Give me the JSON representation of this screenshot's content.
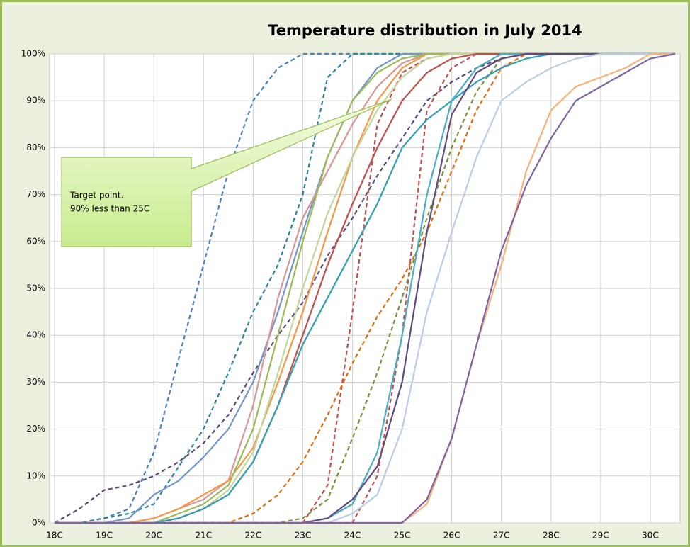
{
  "chart_data": {
    "type": "line",
    "title": "Temperature distribution in July 2014",
    "annotation": [
      "Target point.",
      "90% less than 25C"
    ],
    "x": [
      18,
      18.5,
      19,
      19.5,
      20,
      20.5,
      21,
      21.5,
      22,
      22.5,
      23,
      23.5,
      24,
      24.5,
      25,
      25.5,
      26,
      26.5,
      27,
      27.5,
      28,
      28.5,
      29,
      29.5,
      30,
      30.5
    ],
    "xlim": [
      17.9,
      30.6
    ],
    "xticks": [
      {
        "value": 18,
        "label": "18C"
      },
      {
        "value": 19,
        "label": "19C"
      },
      {
        "value": 20,
        "label": "20C"
      },
      {
        "value": 21,
        "label": "21C"
      },
      {
        "value": 22,
        "label": "22C"
      },
      {
        "value": 23,
        "label": "23C"
      },
      {
        "value": 24,
        "label": "24C"
      },
      {
        "value": 25,
        "label": "25C"
      },
      {
        "value": 26,
        "label": "26C"
      },
      {
        "value": 27,
        "label": "27C"
      },
      {
        "value": 28,
        "label": "28C"
      },
      {
        "value": 29,
        "label": "29C"
      },
      {
        "value": 30,
        "label": "30C"
      }
    ],
    "ylim": [
      0,
      100
    ],
    "yticks": [
      {
        "value": 0,
        "label": "0%"
      },
      {
        "value": 10,
        "label": "10%"
      },
      {
        "value": 20,
        "label": "20%"
      },
      {
        "value": 30,
        "label": "30%"
      },
      {
        "value": 40,
        "label": "40%"
      },
      {
        "value": 50,
        "label": "50%"
      },
      {
        "value": 60,
        "label": "60%"
      },
      {
        "value": 70,
        "label": "70%"
      },
      {
        "value": 80,
        "label": "80%"
      },
      {
        "value": 90,
        "label": "90%"
      },
      {
        "value": 100,
        "label": "100%"
      }
    ],
    "grid": true,
    "series": [
      {
        "color": "#4f81bd",
        "dashed": true,
        "values": [
          0,
          0,
          1,
          3,
          15,
          35,
          55,
          75,
          90,
          97,
          100,
          100,
          100,
          100,
          100,
          100,
          100,
          100,
          100,
          100,
          100,
          100,
          100,
          100,
          100,
          100
        ]
      },
      {
        "color": "#31859c",
        "dashed": true,
        "values": [
          0,
          0,
          1,
          2,
          4,
          12,
          20,
          32,
          45,
          55,
          70,
          95,
          100,
          100,
          100,
          100,
          100,
          100,
          100,
          100,
          100,
          100,
          100,
          100,
          100,
          100
        ]
      },
      {
        "color": "#604a7b",
        "dashed": true,
        "values": [
          0,
          3,
          7,
          8,
          10,
          13,
          17,
          23,
          32,
          40,
          47,
          57,
          65,
          74,
          82,
          90,
          94,
          97,
          99,
          100,
          100,
          100,
          100,
          100,
          100,
          100
        ]
      },
      {
        "color": "#c0504d",
        "dashed": true,
        "values": [
          0,
          0,
          0,
          0,
          0,
          0,
          0,
          0,
          0,
          0,
          0,
          8,
          45,
          85,
          96,
          99,
          100,
          100,
          100,
          100,
          100,
          100,
          100,
          100,
          100,
          100
        ]
      },
      {
        "color": "#c0504d",
        "dashed": true,
        "values": [
          0,
          0,
          0,
          0,
          0,
          0,
          0,
          0,
          0,
          0,
          0,
          0,
          0,
          10,
          40,
          88,
          97,
          100,
          100,
          100,
          100,
          100,
          100,
          100,
          100,
          100
        ]
      },
      {
        "color": "#e46c0a",
        "dashed": true,
        "values": [
          0,
          0,
          0,
          0,
          0,
          0,
          0,
          0,
          2,
          6,
          13,
          23,
          34,
          44,
          52,
          62,
          75,
          88,
          97,
          100,
          100,
          100,
          100,
          100,
          100,
          100
        ]
      },
      {
        "color": "#77933c",
        "dashed": true,
        "values": [
          0,
          0,
          0,
          0,
          0,
          0,
          0,
          0,
          0,
          0,
          1,
          5,
          18,
          32,
          48,
          65,
          80,
          92,
          99,
          100,
          100,
          100,
          100,
          100,
          100,
          100
        ]
      },
      {
        "color": "#7396c8",
        "dashed": false,
        "values": [
          0,
          0,
          0,
          1,
          6,
          9,
          14,
          20,
          30,
          45,
          62,
          78,
          90,
          97,
          100,
          100,
          100,
          100,
          100,
          100,
          100,
          100,
          100,
          100,
          100,
          100
        ]
      },
      {
        "color": "#d99694",
        "dashed": false,
        "values": [
          0,
          0,
          0,
          0,
          1,
          3,
          5,
          9,
          25,
          48,
          65,
          75,
          85,
          93,
          98,
          100,
          100,
          100,
          100,
          100,
          100,
          100,
          100,
          100,
          100,
          100
        ]
      },
      {
        "color": "#f79646",
        "dashed": false,
        "values": [
          0,
          0,
          0,
          0,
          1,
          3,
          6,
          9,
          16,
          30,
          45,
          62,
          78,
          90,
          97,
          100,
          100,
          100,
          100,
          100,
          100,
          100,
          100,
          100,
          100,
          100
        ]
      },
      {
        "color": "#9bbb59",
        "dashed": false,
        "values": [
          0,
          0,
          0,
          0,
          0,
          2,
          4,
          8,
          20,
          40,
          60,
          78,
          90,
          96,
          99,
          100,
          100,
          100,
          100,
          100,
          100,
          100,
          100,
          100,
          100,
          100
        ]
      },
      {
        "color": "#c3d69b",
        "dashed": false,
        "values": [
          0,
          0,
          0,
          0,
          0,
          1,
          3,
          7,
          15,
          32,
          50,
          66,
          78,
          88,
          95,
          99,
          100,
          100,
          100,
          100,
          100,
          100,
          100,
          100,
          100,
          100
        ]
      },
      {
        "color": "#c0504d",
        "dashed": false,
        "values": [
          0,
          0,
          0,
          0,
          0,
          1,
          3,
          6,
          13,
          25,
          40,
          55,
          68,
          80,
          90,
          96,
          99,
          100,
          100,
          100,
          100,
          100,
          100,
          100,
          100,
          100
        ]
      },
      {
        "color": "#31a0b5",
        "dashed": false,
        "values": [
          0,
          0,
          0,
          0,
          0,
          1,
          3,
          6,
          13,
          25,
          38,
          48,
          58,
          68,
          80,
          86,
          90,
          94,
          97,
          99,
          100,
          100,
          100,
          100,
          100,
          100
        ]
      },
      {
        "color": "#4bacc6",
        "dashed": false,
        "values": [
          0,
          0,
          0,
          0,
          0,
          0,
          0,
          0,
          0,
          0,
          0,
          1,
          4,
          15,
          40,
          70,
          90,
          97,
          100,
          100,
          100,
          100,
          100,
          100,
          100,
          100
        ]
      },
      {
        "color": "#604a7b",
        "dashed": false,
        "values": [
          0,
          0,
          0,
          0,
          0,
          0,
          0,
          0,
          0,
          0,
          0,
          1,
          5,
          12,
          30,
          62,
          87,
          96,
          99,
          100,
          100,
          100,
          100,
          100,
          100,
          100
        ]
      },
      {
        "color": "#b9cde5",
        "dashed": false,
        "values": [
          0,
          0,
          0,
          0,
          0,
          0,
          0,
          0,
          0,
          0,
          0,
          0,
          2,
          6,
          20,
          45,
          62,
          78,
          90,
          94,
          97,
          99,
          100,
          100,
          100,
          100
        ]
      },
      {
        "color": "#fab07a",
        "dashed": false,
        "values": [
          0,
          0,
          0,
          0,
          0,
          0,
          0,
          0,
          0,
          0,
          0,
          0,
          0,
          0,
          0,
          4,
          18,
          38,
          55,
          75,
          88,
          93,
          95,
          97,
          100,
          100
        ]
      },
      {
        "color": "#8064a2",
        "dashed": false,
        "values": [
          0,
          0,
          0,
          0,
          0,
          0,
          0,
          0,
          0,
          0,
          0,
          0,
          0,
          0,
          0,
          5,
          18,
          38,
          58,
          72,
          82,
          90,
          93,
          96,
          99,
          100
        ]
      }
    ]
  }
}
